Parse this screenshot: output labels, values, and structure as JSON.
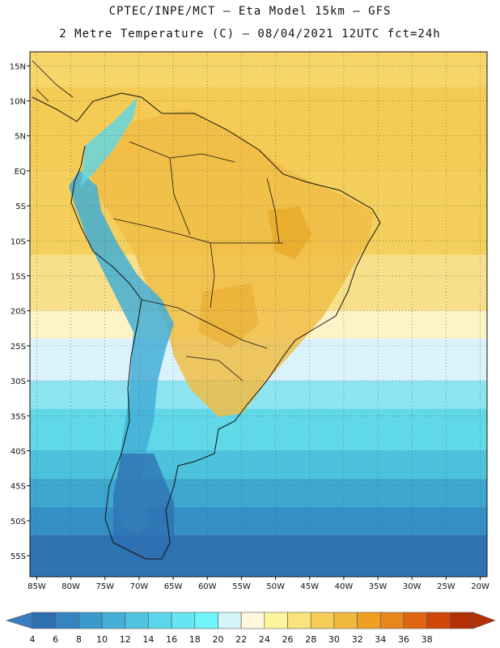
{
  "header": {
    "line1": "CPTEC/INPE/MCT –  Eta Model 15km – GFS",
    "line2": "2 Metre Temperature (C) – 08/04/2021 12UTC fct=24h"
  },
  "map": {
    "lon_range": [
      -86,
      -19
    ],
    "lat_range": [
      17,
      -58
    ],
    "lat_ticks": [
      {
        "lat": 15,
        "label": "15N"
      },
      {
        "lat": 10,
        "label": "10N"
      },
      {
        "lat": 5,
        "label": "5N"
      },
      {
        "lat": 0,
        "label": "EQ"
      },
      {
        "lat": -5,
        "label": "5S"
      },
      {
        "lat": -10,
        "label": "10S"
      },
      {
        "lat": -15,
        "label": "15S"
      },
      {
        "lat": -20,
        "label": "20S"
      },
      {
        "lat": -25,
        "label": "25S"
      },
      {
        "lat": -30,
        "label": "30S"
      },
      {
        "lat": -35,
        "label": "35S"
      },
      {
        "lat": -40,
        "label": "40S"
      },
      {
        "lat": -45,
        "label": "45S"
      },
      {
        "lat": -50,
        "label": "50S"
      },
      {
        "lat": -55,
        "label": "55S"
      }
    ],
    "lon_ticks": [
      {
        "lon": -85,
        "label": "85W"
      },
      {
        "lon": -80,
        "label": "80W"
      },
      {
        "lon": -75,
        "label": "75W"
      },
      {
        "lon": -70,
        "label": "70W"
      },
      {
        "lon": -65,
        "label": "65W"
      },
      {
        "lon": -60,
        "label": "60W"
      },
      {
        "lon": -55,
        "label": "55W"
      },
      {
        "lon": -50,
        "label": "50W"
      },
      {
        "lon": -45,
        "label": "45W"
      },
      {
        "lon": -40,
        "label": "40W"
      },
      {
        "lon": -35,
        "label": "35W"
      },
      {
        "lon": -30,
        "label": "30W"
      },
      {
        "lon": -25,
        "label": "25W"
      },
      {
        "lon": -20,
        "label": "20W"
      }
    ]
  },
  "temperature_bands": [
    {
      "lat_from": 17,
      "lat_to": 12,
      "color": "#f6d569"
    },
    {
      "lat_from": 12,
      "lat_to": 0,
      "color": "#f4cb55"
    },
    {
      "lat_from": 0,
      "lat_to": -12,
      "color": "#f4cf5b"
    },
    {
      "lat_from": -12,
      "lat_to": -20,
      "color": "#f8e08a"
    },
    {
      "lat_from": -20,
      "lat_to": -24,
      "color": "#fdf3c8"
    },
    {
      "lat_from": -24,
      "lat_to": -30,
      "color": "#d9f2fb"
    },
    {
      "lat_from": -30,
      "lat_to": -34,
      "color": "#8ee4f0"
    },
    {
      "lat_from": -34,
      "lat_to": -40,
      "color": "#5fd8e8"
    },
    {
      "lat_from": -40,
      "lat_to": -44,
      "color": "#4dc2dc"
    },
    {
      "lat_from": -44,
      "lat_to": -48,
      "color": "#3ea7cf"
    },
    {
      "lat_from": -48,
      "lat_to": -52,
      "color": "#3490c6"
    },
    {
      "lat_from": -52,
      "lat_to": -58,
      "color": "#2e73b2"
    }
  ],
  "colorbar": {
    "ticks": [
      "4",
      "6",
      "8",
      "10",
      "12",
      "14",
      "16",
      "18",
      "20",
      "22",
      "24",
      "26",
      "28",
      "30",
      "32",
      "34",
      "36",
      "38"
    ],
    "colors": [
      "#2e6fb0",
      "#3384c0",
      "#3a9acb",
      "#43aed6",
      "#4fc3e0",
      "#5cd6ea",
      "#66e6f2",
      "#6ff6fb",
      "#d4f4fb",
      "#fff8dc",
      "#fef59e",
      "#fbe27a",
      "#f5cd57",
      "#f0b83c",
      "#eea023",
      "#e8851b",
      "#df6512",
      "#cf4709",
      "#b33006"
    ],
    "under_color": "#3a7cc0",
    "over_color": "#b33006"
  }
}
